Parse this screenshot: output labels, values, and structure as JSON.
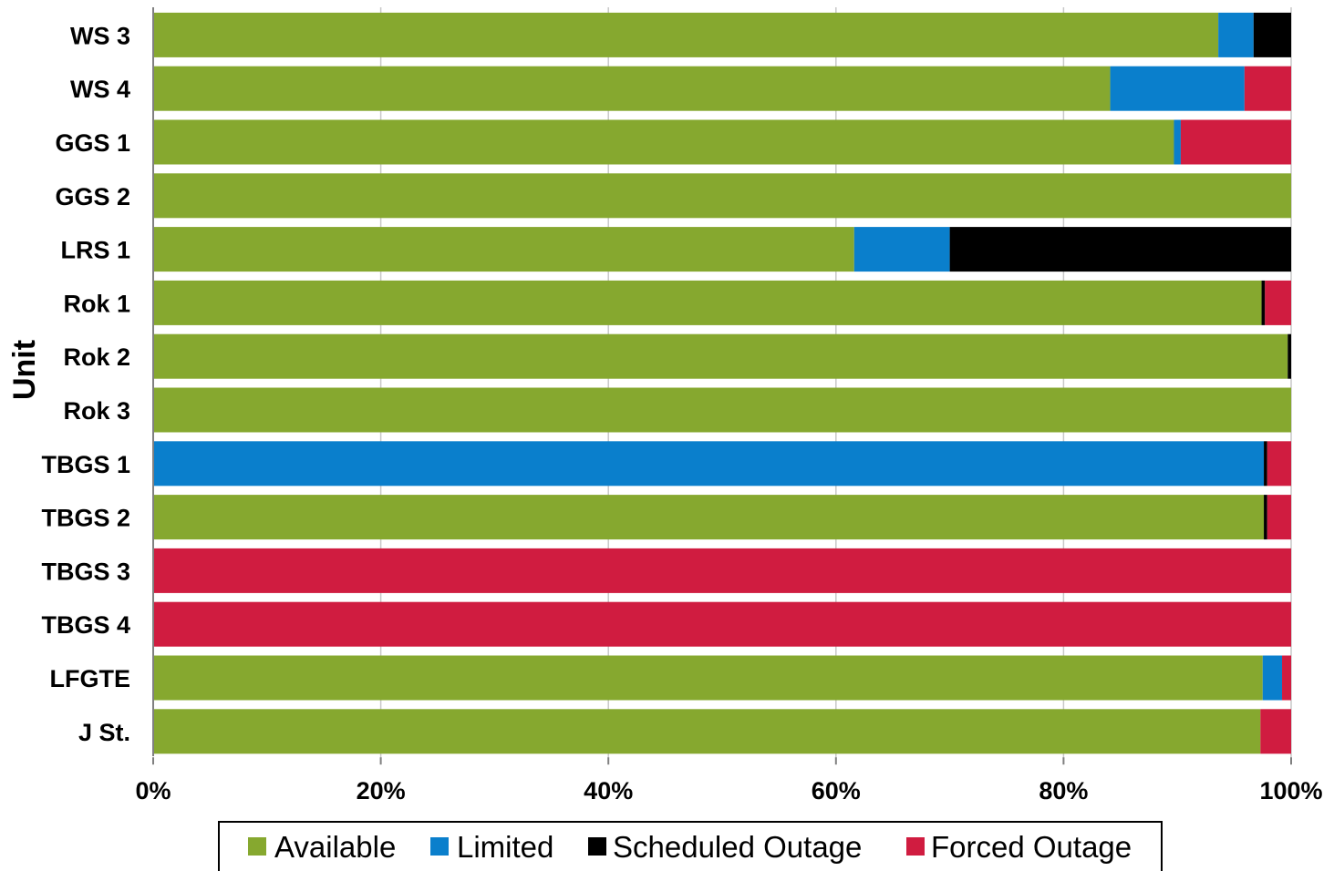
{
  "chart_data": {
    "type": "bar",
    "orientation": "horizontal",
    "stacked": true,
    "ylabel": "Unit",
    "xlabel": "",
    "xlim": [
      0,
      100
    ],
    "x_tick_labels": [
      "0%",
      "20%",
      "40%",
      "60%",
      "80%",
      "100%"
    ],
    "grid": "vertical",
    "legend_position": "bottom",
    "categories": [
      "WS 3",
      "WS 4",
      "GGS 1",
      "GGS 2",
      "LRS 1",
      "Rok 1",
      "Rok 2",
      "Rok 3",
      "TBGS 1",
      "TBGS 2",
      "TBGS 3",
      "TBGS 4",
      "LFGTE",
      "J St."
    ],
    "series": [
      {
        "name": "Available",
        "color": "#86a82f",
        "values": [
          93.6,
          84.1,
          89.7,
          100,
          61.6,
          97.4,
          99.7,
          100,
          0,
          97.6,
          0,
          0,
          97.5,
          97.3
        ]
      },
      {
        "name": "Limited",
        "color": "#0a7fcc",
        "values": [
          3.1,
          11.8,
          0.6,
          0,
          8.4,
          0,
          0,
          0,
          97.6,
          0,
          0,
          0,
          1.7,
          0
        ]
      },
      {
        "name": "Scheduled Outage",
        "color": "#000000",
        "values": [
          3.3,
          0,
          0,
          0,
          30.0,
          0.3,
          0.3,
          0,
          0.3,
          0.3,
          0,
          0,
          0,
          0
        ]
      },
      {
        "name": "Forced Outage",
        "color": "#d01c40",
        "values": [
          0,
          4.1,
          9.7,
          0,
          0,
          2.3,
          0,
          0,
          2.1,
          2.1,
          100,
          100,
          0.8,
          2.7
        ]
      }
    ]
  }
}
